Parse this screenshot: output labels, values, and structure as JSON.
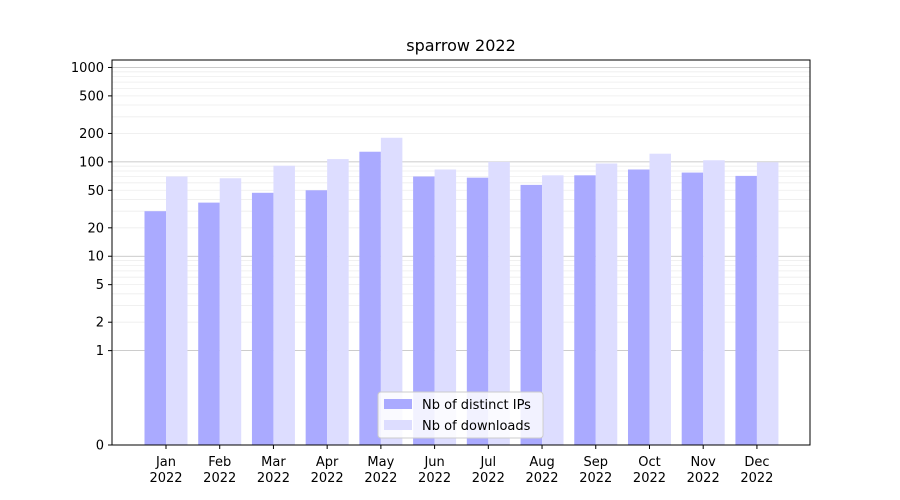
{
  "chart_data": {
    "type": "bar",
    "title": "sparrow 2022",
    "xlabel": "",
    "ylabel": "",
    "y_scale": "symlog",
    "ylim": [
      0,
      1200
    ],
    "y_ticks": [
      0,
      1,
      2,
      5,
      10,
      20,
      50,
      100,
      200,
      500,
      1000
    ],
    "y_tick_labels": [
      "0",
      "1",
      "2",
      "5",
      "10",
      "20",
      "50",
      "100",
      "200",
      "500",
      "1000"
    ],
    "grid": "horizontal",
    "legend_position": "bottom-center",
    "categories": [
      [
        "Jan",
        "2022"
      ],
      [
        "Feb",
        "2022"
      ],
      [
        "Mar",
        "2022"
      ],
      [
        "Apr",
        "2022"
      ],
      [
        "May",
        "2022"
      ],
      [
        "Jun",
        "2022"
      ],
      [
        "Jul",
        "2022"
      ],
      [
        "Aug",
        "2022"
      ],
      [
        "Sep",
        "2022"
      ],
      [
        "Oct",
        "2022"
      ],
      [
        "Nov",
        "2022"
      ],
      [
        "Dec",
        "2022"
      ]
    ],
    "series": [
      {
        "name": "Nb of distinct IPs",
        "color": "#aaaaff",
        "values": [
          30,
          37,
          47,
          50,
          128,
          70,
          68,
          57,
          72,
          83,
          77,
          71
        ]
      },
      {
        "name": "Nb of downloads",
        "color": "#ddddff",
        "values": [
          70,
          67,
          91,
          107,
          180,
          83,
          100,
          72,
          96,
          122,
          104,
          99
        ]
      }
    ]
  }
}
